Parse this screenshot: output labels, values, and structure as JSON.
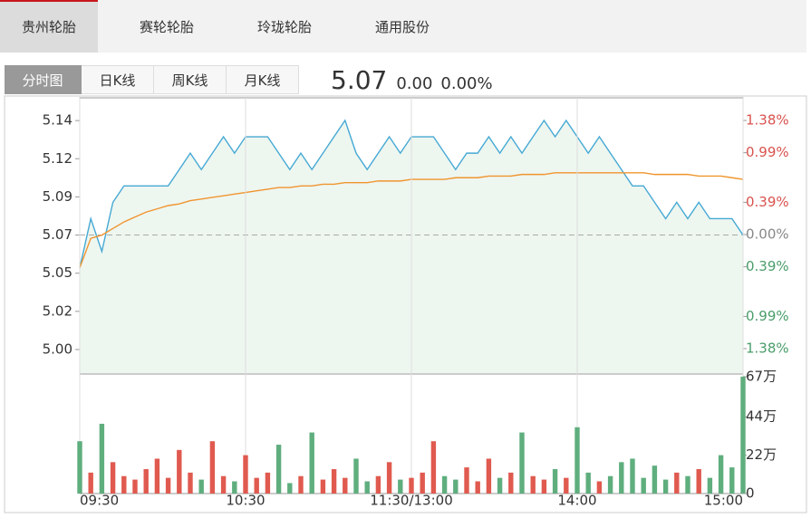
{
  "tabs": [
    "贵州轮胎",
    "赛轮轮胎",
    "玲珑轮胎",
    "通用股份"
  ],
  "period_tabs": [
    "分时图",
    "日K线",
    "周K线",
    "月K线"
  ],
  "quote": {
    "price": "5.07",
    "change": "0.00",
    "change_pct": "0.00%"
  },
  "chart_data": [
    {
      "type": "line",
      "x": [
        0,
        4,
        8,
        12,
        16,
        20,
        24,
        28,
        32,
        36,
        40,
        44,
        48,
        52,
        56,
        60,
        64,
        68,
        72,
        76,
        80,
        84,
        88,
        92,
        96,
        100,
        104,
        108,
        112,
        116,
        120,
        124,
        128,
        132,
        136,
        140,
        144,
        148,
        152,
        156,
        160,
        164,
        168,
        172,
        176,
        180,
        184,
        188,
        192,
        196,
        200,
        204,
        208,
        212,
        216,
        220,
        224,
        228,
        232,
        236,
        240
      ],
      "xlim": [
        0,
        240
      ],
      "series": [
        {
          "color": "#45a9d4",
          "values": [
            5.05,
            5.08,
            5.06,
            5.09,
            5.1,
            5.1,
            5.1,
            5.1,
            5.1,
            5.11,
            5.12,
            5.11,
            5.12,
            5.13,
            5.12,
            5.13,
            5.13,
            5.13,
            5.12,
            5.11,
            5.12,
            5.11,
            5.12,
            5.13,
            5.14,
            5.12,
            5.11,
            5.12,
            5.13,
            5.12,
            5.13,
            5.13,
            5.13,
            5.12,
            5.11,
            5.12,
            5.12,
            5.13,
            5.12,
            5.13,
            5.12,
            5.13,
            5.14,
            5.13,
            5.14,
            5.13,
            5.12,
            5.13,
            5.12,
            5.11,
            5.1,
            5.1,
            5.09,
            5.08,
            5.09,
            5.08,
            5.09,
            5.08,
            5.08,
            5.08,
            5.07
          ]
        },
        {
          "color": "#f0952e",
          "values": [
            5.05,
            5.068,
            5.07,
            5.074,
            5.078,
            5.081,
            5.084,
            5.086,
            5.088,
            5.089,
            5.091,
            5.092,
            5.093,
            5.094,
            5.095,
            5.096,
            5.097,
            5.098,
            5.099,
            5.099,
            5.1,
            5.1,
            5.101,
            5.101,
            5.102,
            5.102,
            5.102,
            5.103,
            5.103,
            5.103,
            5.104,
            5.104,
            5.104,
            5.104,
            5.105,
            5.105,
            5.105,
            5.106,
            5.106,
            5.106,
            5.107,
            5.107,
            5.107,
            5.108,
            5.108,
            5.108,
            5.108,
            5.108,
            5.108,
            5.108,
            5.108,
            5.108,
            5.107,
            5.107,
            5.107,
            5.107,
            5.106,
            5.106,
            5.106,
            5.105,
            5.104
          ]
        }
      ],
      "area_color": "#eef6f0",
      "baseline": 5.07,
      "ylim": [
        4.9857,
        5.1538
      ],
      "yticks": [
        {
          "value": 5.1399,
          "label": "5.14"
        },
        {
          "value": 5.1166,
          "label": "5.12"
        },
        {
          "value": 5.0933,
          "label": "5.09"
        },
        {
          "value": 5.07,
          "label": "5.07"
        },
        {
          "value": 5.0467,
          "label": "5.05"
        },
        {
          "value": 5.0234,
          "label": "5.02"
        },
        {
          "value": 5.0001,
          "label": "5.00"
        }
      ],
      "y2lim": [
        -1.676,
        1.654
      ],
      "y2ticks": [
        {
          "value": 1.38,
          "label": "1.38%"
        },
        {
          "value": 0.99,
          "label": "0.99%"
        },
        {
          "value": 0.39,
          "label": "0.39%"
        },
        {
          "value": 0,
          "label": "0.00%"
        },
        {
          "value": -0.39,
          "label": "0.39%"
        },
        {
          "value": -0.99,
          "label": "0.99%"
        },
        {
          "value": -1.38,
          "label": "1.38%"
        }
      ],
      "up_color": "#d9534f",
      "down_color": "#4a9d6b",
      "flat_color": "#888888"
    },
    {
      "type": "bar",
      "x": [
        0,
        4,
        8,
        12,
        16,
        20,
        24,
        28,
        32,
        36,
        40,
        44,
        48,
        52,
        56,
        60,
        64,
        68,
        72,
        76,
        80,
        84,
        88,
        92,
        96,
        100,
        104,
        108,
        112,
        116,
        120,
        124,
        128,
        132,
        136,
        140,
        144,
        148,
        152,
        156,
        160,
        164,
        168,
        172,
        176,
        180,
        184,
        188,
        192,
        196,
        200,
        204,
        208,
        212,
        216,
        220,
        224,
        228,
        232,
        236,
        240
      ],
      "xlim": [
        0,
        240
      ],
      "xticks": [
        {
          "value": 0,
          "label": "09:30"
        },
        {
          "value": 60,
          "label": "10:30"
        },
        {
          "value": 120,
          "label": "11:30/13:00"
        },
        {
          "value": 180,
          "label": "14:00"
        },
        {
          "value": 240,
          "label": "15:00"
        }
      ],
      "values": [
        30,
        12,
        40,
        18,
        10,
        8,
        14,
        20,
        9,
        25,
        12,
        8,
        30,
        10,
        7,
        22,
        9,
        12,
        28,
        6,
        10,
        35,
        8,
        14,
        9,
        20,
        7,
        10,
        18,
        8,
        9,
        12,
        30,
        10,
        8,
        15,
        7,
        20,
        9,
        12,
        35,
        10,
        8,
        14,
        9,
        38,
        12,
        7,
        10,
        18,
        20,
        9,
        16,
        8,
        12,
        10,
        14,
        9,
        22,
        15,
        67
      ],
      "bar_colors": [
        "#5fae7e",
        "#e05a4f",
        "#5fae7e",
        "#e05a4f",
        "#e05a4f",
        "#e05a4f",
        "#e05a4f",
        "#e05a4f",
        "#e05a4f",
        "#e05a4f",
        "#e05a4f",
        "#5fae7e",
        "#e05a4f",
        "#e05a4f",
        "#5fae7e",
        "#e05a4f",
        "#e05a4f",
        "#e05a4f",
        "#5fae7e",
        "#5fae7e",
        "#e05a4f",
        "#5fae7e",
        "#e05a4f",
        "#e05a4f",
        "#e05a4f",
        "#5fae7e",
        "#5fae7e",
        "#e05a4f",
        "#e05a4f",
        "#5fae7e",
        "#e05a4f",
        "#e05a4f",
        "#e05a4f",
        "#5fae7e",
        "#5fae7e",
        "#e05a4f",
        "#e05a4f",
        "#e05a4f",
        "#5fae7e",
        "#e05a4f",
        "#5fae7e",
        "#e05a4f",
        "#e05a4f",
        "#5fae7e",
        "#e05a4f",
        "#5fae7e",
        "#5fae7e",
        "#e05a4f",
        "#5fae7e",
        "#5fae7e",
        "#5fae7e",
        "#5fae7e",
        "#5fae7e",
        "#5fae7e",
        "#e05a4f",
        "#5fae7e",
        "#e05a4f",
        "#5fae7e",
        "#5fae7e",
        "#5fae7e",
        "#5fae7e"
      ],
      "ylim": [
        0,
        68
      ],
      "yticks": [
        {
          "value": 67,
          "label": "67万"
        },
        {
          "value": 44,
          "label": "44万"
        },
        {
          "value": 22,
          "label": "22万"
        },
        0
      ],
      "grid": true
    }
  ]
}
